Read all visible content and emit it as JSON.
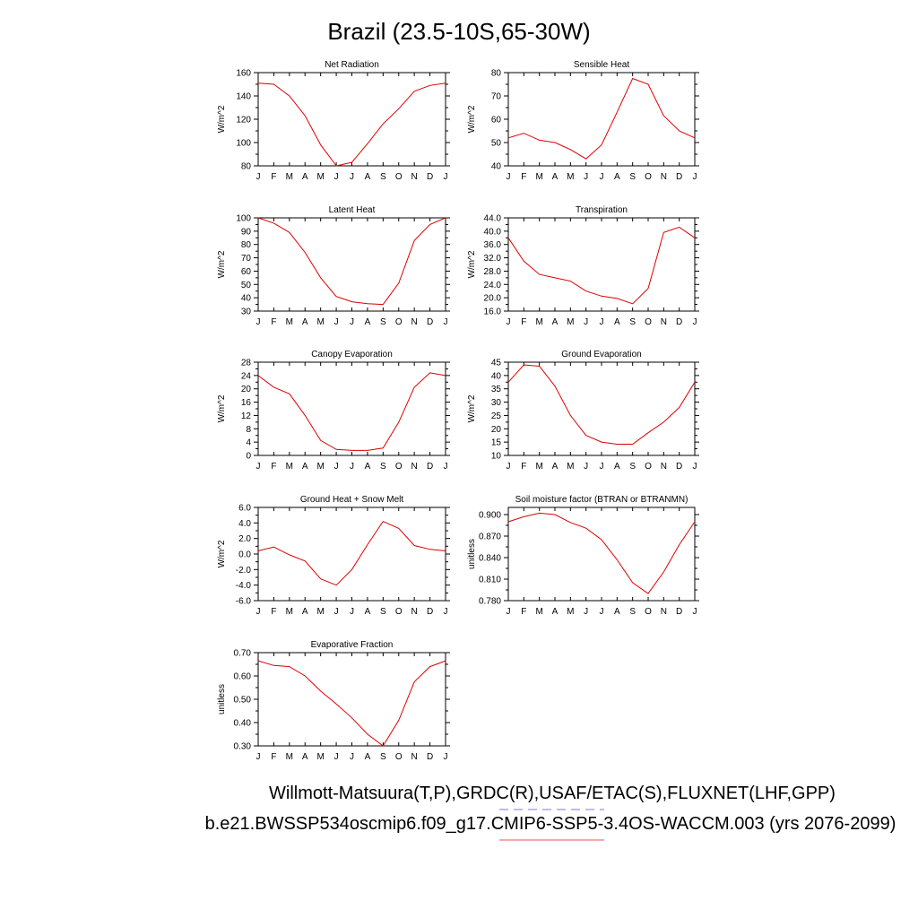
{
  "figure": {
    "title": "Brazil (23.5-10S,65-30W)",
    "legend_lines": [
      {
        "text": "Willmott-Matsuura(T,P),GRDC(R),USAF/ETAC(S),FLUXNET(LHF,GPP)",
        "color": "#7777ee",
        "dash": true
      },
      {
        "text": "b.e21.BWSSP534oscmip6.f09_g17.CMIP6-SSP5-3.4OS-WACCM.003 (yrs 2076-2099)",
        "color": "#ee7777",
        "dash": false
      }
    ]
  },
  "series_color": "#dd0000",
  "chart_data": [
    {
      "type": "line",
      "title": "Net Radiation",
      "ylabel": "W/m^2",
      "categories": [
        "J",
        "F",
        "M",
        "A",
        "M",
        "J",
        "J",
        "A",
        "S",
        "O",
        "N",
        "D",
        "J"
      ],
      "values": [
        151,
        150,
        140,
        123,
        98,
        80,
        83,
        99,
        116,
        129,
        144,
        149,
        151
      ],
      "ylim": [
        80,
        160
      ],
      "yticks": [
        80,
        100,
        120,
        140,
        160
      ],
      "ytick_labels": [
        "80",
        "100",
        "120",
        "140",
        "160"
      ]
    },
    {
      "type": "line",
      "title": "Sensible Heat",
      "ylabel": "W/m^2",
      "categories": [
        "J",
        "F",
        "M",
        "A",
        "M",
        "J",
        "J",
        "A",
        "S",
        "O",
        "N",
        "D",
        "J"
      ],
      "values": [
        52,
        54,
        51,
        50,
        47,
        43,
        49,
        63,
        77.5,
        75,
        61.5,
        55,
        52
      ],
      "ylim": [
        40,
        80
      ],
      "yticks": [
        40,
        50,
        60,
        70,
        80
      ],
      "ytick_labels": [
        "40",
        "50",
        "60",
        "70",
        "80"
      ]
    },
    {
      "type": "line",
      "title": "Latent Heat",
      "ylabel": "W/m^2",
      "categories": [
        "J",
        "F",
        "M",
        "A",
        "M",
        "J",
        "J",
        "A",
        "S",
        "O",
        "N",
        "D",
        "J"
      ],
      "values": [
        100,
        96,
        89,
        74,
        55,
        41,
        37,
        35.5,
        35,
        51,
        83,
        95,
        100
      ],
      "ylim": [
        30,
        100
      ],
      "yticks": [
        30,
        40,
        50,
        60,
        70,
        80,
        90,
        100
      ],
      "ytick_labels": [
        "30",
        "40",
        "50",
        "60",
        "70",
        "80",
        "90",
        "100"
      ]
    },
    {
      "type": "line",
      "title": "Transpiration",
      "ylabel": "W/m^2",
      "categories": [
        "J",
        "F",
        "M",
        "A",
        "M",
        "J",
        "J",
        "A",
        "S",
        "O",
        "N",
        "D",
        "J"
      ],
      "values": [
        38,
        31,
        27,
        26,
        25,
        22,
        20.5,
        19.8,
        18.2,
        22.8,
        39.6,
        41.2,
        38
      ],
      "ylim": [
        16,
        44
      ],
      "yticks": [
        16,
        20,
        24,
        28,
        32,
        36,
        40,
        44
      ],
      "ytick_labels": [
        "16.0",
        "20.0",
        "24.0",
        "28.0",
        "32.0",
        "36.0",
        "40.0",
        "44.0"
      ]
    },
    {
      "type": "line",
      "title": "Canopy Evaporation",
      "ylabel": "W/m^2",
      "categories": [
        "J",
        "F",
        "M",
        "A",
        "M",
        "J",
        "J",
        "A",
        "S",
        "O",
        "N",
        "D",
        "J"
      ],
      "values": [
        24,
        20.5,
        18.5,
        12,
        4.5,
        1.8,
        1.5,
        1.5,
        2.2,
        10,
        20.5,
        24.8,
        24
      ],
      "ylim": [
        0,
        28
      ],
      "yticks": [
        0,
        4,
        8,
        12,
        16,
        20,
        24,
        28
      ],
      "ytick_labels": [
        "0",
        "4",
        "8",
        "12",
        "16",
        "20",
        "24",
        "28"
      ]
    },
    {
      "type": "line",
      "title": "Ground Evaporation",
      "ylabel": "W/m^2",
      "categories": [
        "J",
        "F",
        "M",
        "A",
        "M",
        "J",
        "J",
        "A",
        "S",
        "O",
        "N",
        "D",
        "J"
      ],
      "values": [
        37.5,
        44,
        43.5,
        36,
        25,
        17.5,
        15,
        14.2,
        14.2,
        18.5,
        22.5,
        28,
        37.5
      ],
      "ylim": [
        10,
        45
      ],
      "yticks": [
        10,
        15,
        20,
        25,
        30,
        35,
        40,
        45
      ],
      "ytick_labels": [
        "10",
        "15",
        "20",
        "25",
        "30",
        "35",
        "40",
        "45"
      ]
    },
    {
      "type": "line",
      "title": "Ground Heat + Snow Melt",
      "ylabel": "W/m^2",
      "categories": [
        "J",
        "F",
        "M",
        "A",
        "M",
        "J",
        "J",
        "A",
        "S",
        "O",
        "N",
        "D",
        "J"
      ],
      "values": [
        0.4,
        0.9,
        -0.1,
        -0.9,
        -3.2,
        -4.0,
        -2.0,
        1.2,
        4.2,
        3.3,
        1.1,
        0.6,
        0.4
      ],
      "ylim": [
        -6,
        6
      ],
      "yticks": [
        -6,
        -4,
        -2,
        0,
        2,
        4,
        6
      ],
      "ytick_labels": [
        "-6.0",
        "-4.0",
        "-2.0",
        "0.0",
        "2.0",
        "4.0",
        "6.0"
      ]
    },
    {
      "type": "line",
      "title": "Soil moisture factor (BTRAN or BTRANMN)",
      "ylabel": "unitless",
      "categories": [
        "J",
        "F",
        "M",
        "A",
        "M",
        "J",
        "J",
        "A",
        "S",
        "O",
        "N",
        "D",
        "J"
      ],
      "values": [
        0.89,
        0.897,
        0.902,
        0.9,
        0.889,
        0.881,
        0.865,
        0.837,
        0.805,
        0.79,
        0.82,
        0.858,
        0.89
      ],
      "ylim": [
        0.78,
        0.91
      ],
      "yticks": [
        0.78,
        0.81,
        0.84,
        0.87,
        0.9
      ],
      "ytick_labels": [
        "0.780",
        "0.810",
        "0.840",
        "0.870",
        "0.900"
      ]
    },
    {
      "type": "line",
      "title": "Evaporative Fraction",
      "ylabel": "unitless",
      "categories": [
        "J",
        "F",
        "M",
        "A",
        "M",
        "J",
        "J",
        "A",
        "S",
        "O",
        "N",
        "D",
        "J"
      ],
      "values": [
        0.665,
        0.645,
        0.64,
        0.6,
        0.535,
        0.48,
        0.42,
        0.35,
        0.3,
        0.41,
        0.575,
        0.64,
        0.665
      ],
      "ylim": [
        0.3,
        0.7
      ],
      "yticks": [
        0.3,
        0.4,
        0.5,
        0.6,
        0.7
      ],
      "ytick_labels": [
        "0.30",
        "0.40",
        "0.50",
        "0.60",
        "0.70"
      ]
    }
  ]
}
